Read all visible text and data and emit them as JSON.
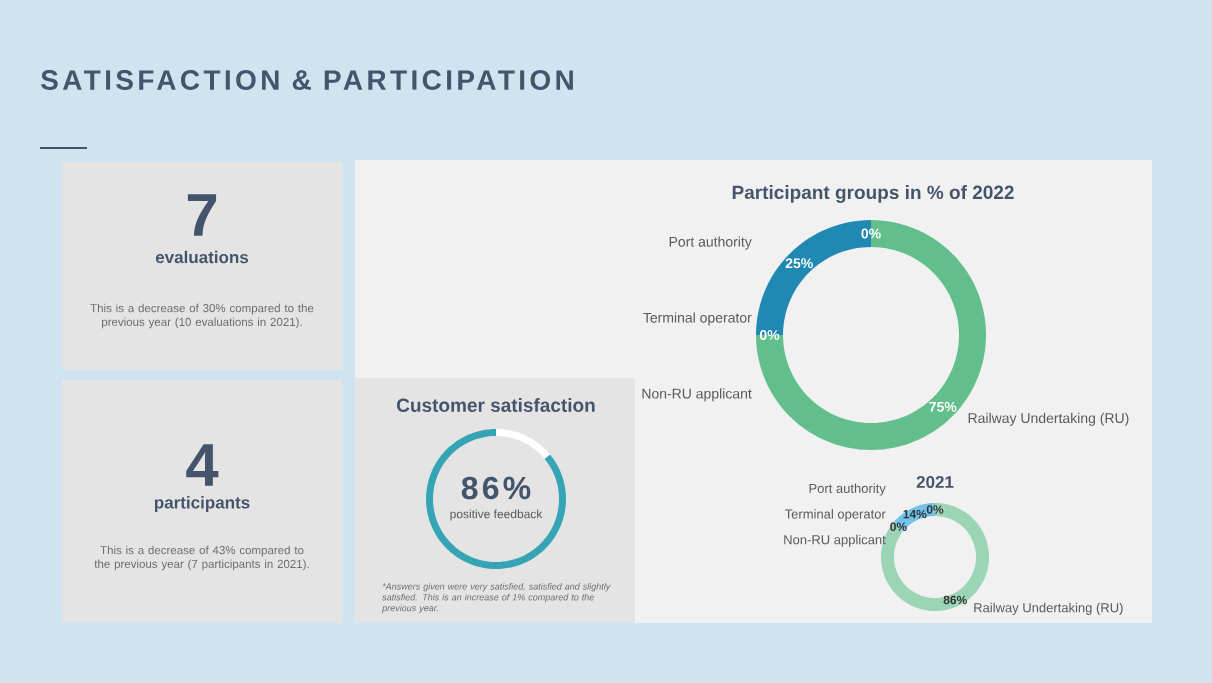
{
  "chart_data": [
    {
      "type": "other",
      "title": "SATISFACTION & PARTICIPATION"
    },
    {
      "type": "other",
      "title": "7",
      "subtitle": "evaluations",
      "annotations": [
        "This is a decrease of 30% compared to the previous year (10 evaluations in 2021)."
      ]
    },
    {
      "type": "other",
      "title": "4",
      "subtitle": "participants",
      "annotations": [
        "This is a decrease of 43% compared to the previous year (7 participants in 2021)."
      ]
    },
    {
      "type": "donut",
      "title": "Customer satisfaction",
      "categories": [
        "positive feedback",
        null
      ],
      "values": [
        86,
        14
      ],
      "colors": [
        "#35a4b4",
        "#ffffff"
      ],
      "value_labels": [
        "86%",
        null
      ],
      "annotations": [
        "*Answers given were very satisfied, satisfied and slightly satisfied. This is an increase of 1% compared to the previous year."
      ]
    },
    {
      "type": "donut",
      "title": "Participant groups in % of 2022",
      "categories": [
        "Port authority",
        "Terminal operator",
        "Non-RU applicant",
        "Railway Undertaking (RU)"
      ],
      "values": [
        0,
        25,
        0,
        75
      ],
      "colors": [
        "#1f5f8b",
        "#1f88b3",
        "#a5a5a5",
        "#62bf8b"
      ],
      "value_labels": [
        "0%",
        "25%",
        "0%",
        "75%"
      ]
    },
    {
      "type": "donut",
      "title": "2021",
      "categories": [
        "Port authority",
        "Terminal operator",
        "Non-RU applicant",
        "Railway Undertaking (RU)"
      ],
      "values": [
        0,
        14,
        0,
        86
      ],
      "colors": [
        "#2a6f9c",
        "#72c3ea",
        "#a5a5a5",
        "#9bd5b5"
      ],
      "value_labels": [
        "0%",
        "14%",
        "0%",
        "86%"
      ]
    }
  ]
}
